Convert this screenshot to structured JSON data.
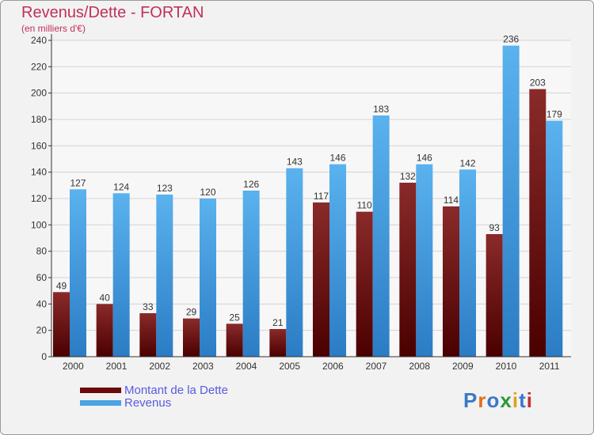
{
  "header": {
    "title": "Revenus/Dette - FORTAN",
    "subtitle": "(en milliers d'€)"
  },
  "legend": {
    "items": [
      {
        "label": "Montant de la Dette",
        "color": "#6b0a0a"
      },
      {
        "label": "Revenus",
        "color": "#4aa3e3"
      }
    ]
  },
  "brand": {
    "letters": [
      {
        "ch": "P",
        "color": "#3b78c8"
      },
      {
        "ch": "r",
        "color": "#e0701a"
      },
      {
        "ch": "o",
        "color": "#3b78c8"
      },
      {
        "ch": "x",
        "color": "#2a9a3a"
      },
      {
        "ch": "i",
        "color": "#e0a020"
      },
      {
        "ch": "t",
        "color": "#3b78c8"
      },
      {
        "ch": "i",
        "color": "#c03030"
      }
    ]
  },
  "chart_data": {
    "type": "bar",
    "categories": [
      "2000",
      "2001",
      "2002",
      "2003",
      "2004",
      "2005",
      "2006",
      "2007",
      "2008",
      "2009",
      "2010",
      "2011"
    ],
    "series": [
      {
        "name": "Montant de la Dette",
        "values": [
          49,
          40,
          33,
          29,
          25,
          21,
          117,
          110,
          132,
          114,
          93,
          203
        ],
        "color": "#6b0a0a"
      },
      {
        "name": "Revenus",
        "values": [
          127,
          124,
          123,
          120,
          126,
          143,
          146,
          183,
          146,
          142,
          236,
          179
        ],
        "color": "#4aa3e3"
      }
    ],
    "ylim": [
      0,
      240
    ],
    "yticks": [
      0,
      20,
      40,
      60,
      80,
      100,
      120,
      140,
      160,
      180,
      200,
      220,
      240
    ],
    "grid": true
  }
}
